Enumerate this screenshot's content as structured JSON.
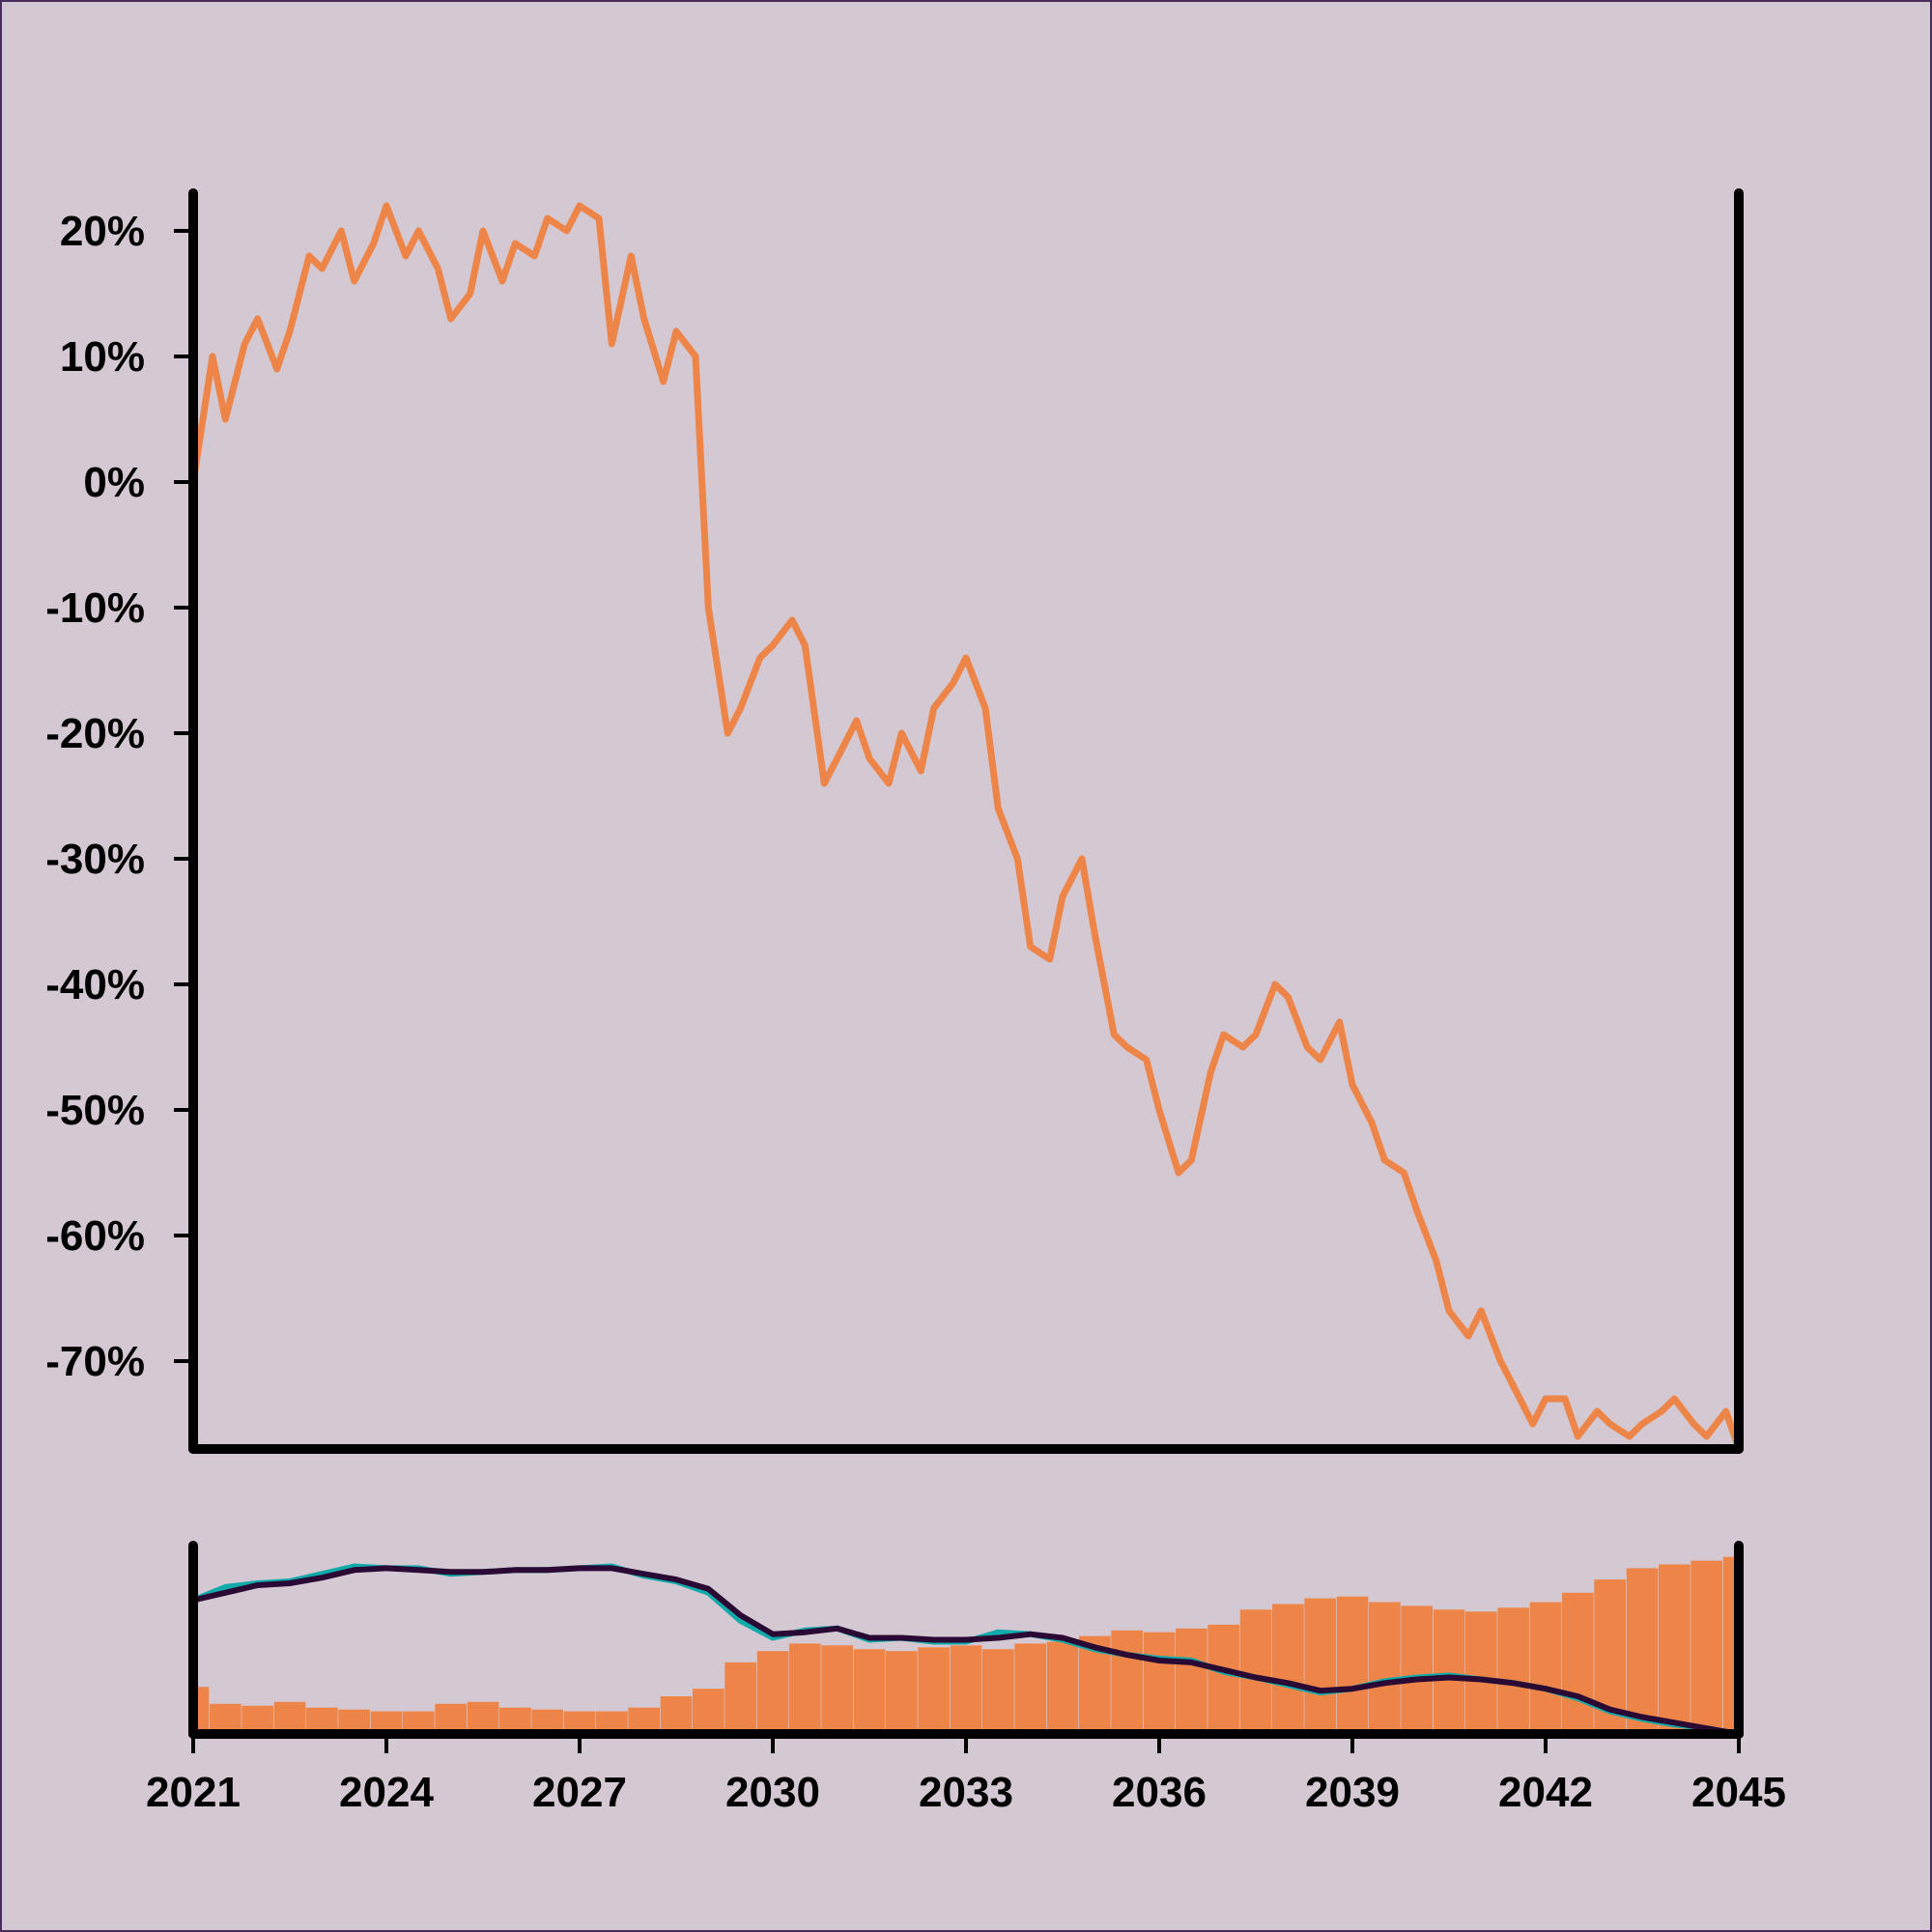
{
  "colors": {
    "background": "#d4c8d2",
    "frame_border": "#4b2a5c",
    "axis": "#000000",
    "price_line": "#ee8548",
    "volume_bars": "#ee8548",
    "fast_ma": "#10aaaa",
    "slow_ma": "#2a0a34"
  },
  "chart_data": [
    {
      "type": "line",
      "role": "main-price-panel",
      "title": "",
      "xlabel": "",
      "ylabel": "",
      "xlim": [
        2021,
        2045
      ],
      "ylim": [
        -77,
        23
      ],
      "y_ticks": [
        20,
        10,
        0,
        -10,
        -20,
        -30,
        -40,
        -50,
        -60,
        -70
      ],
      "y_tick_labels": [
        "20%",
        "10%",
        "0%",
        "-10%",
        "-20%",
        "-30%",
        "-40%",
        "-50%",
        "-60%",
        "-70%"
      ],
      "grid": false,
      "legend": "none",
      "series": [
        {
          "x": [
            2021.0,
            2021.3,
            2021.5,
            2021.8,
            2022.0,
            2022.3,
            2022.5,
            2022.8,
            2023.0,
            2023.3,
            2023.5,
            2023.8,
            2024.0,
            2024.3,
            2024.5,
            2024.8,
            2025.0,
            2025.3,
            2025.5,
            2025.8,
            2026.0,
            2026.3,
            2026.5,
            2026.8,
            2027.0,
            2027.3,
            2027.5,
            2027.8,
            2028.0,
            2028.3,
            2028.5,
            2028.8,
            2029.0,
            2029.3,
            2029.5,
            2029.8,
            2030.0,
            2030.3,
            2030.5,
            2030.8,
            2031.0,
            2031.3,
            2031.5,
            2031.8,
            2032.0,
            2032.3,
            2032.5,
            2032.8,
            2033.0,
            2033.3,
            2033.5,
            2033.8,
            2034.0,
            2034.3,
            2034.5,
            2034.8,
            2035.0,
            2035.3,
            2035.5,
            2035.8,
            2036.0,
            2036.3,
            2036.5,
            2036.8,
            2037.0,
            2037.3,
            2037.5,
            2037.8,
            2038.0,
            2038.3,
            2038.5,
            2038.8,
            2039.0,
            2039.3,
            2039.5,
            2039.8,
            2040.0,
            2040.3,
            2040.5,
            2040.8,
            2041.0,
            2041.3,
            2041.5,
            2041.8,
            2042.0,
            2042.3,
            2042.5,
            2042.8,
            2043.0,
            2043.3,
            2043.5,
            2043.8,
            2044.0,
            2044.3,
            2044.5,
            2044.8,
            2045.0
          ],
          "values": [
            0,
            10,
            5,
            11,
            13,
            9,
            12,
            18,
            17,
            20,
            16,
            19,
            22,
            18,
            20,
            17,
            13,
            15,
            20,
            16,
            19,
            18,
            21,
            20,
            22,
            21,
            11,
            18,
            13,
            8,
            12,
            10,
            -10,
            -20,
            -18,
            -14,
            -13,
            -11,
            -13,
            -24,
            -22,
            -19,
            -22,
            -24,
            -20,
            -23,
            -18,
            -16,
            -14,
            -18,
            -26,
            -30,
            -37,
            -38,
            -33,
            -30,
            -36,
            -44,
            -45,
            -46,
            -50,
            -55,
            -54,
            -47,
            -44,
            -45,
            -44,
            -40,
            -41,
            -45,
            -46,
            -43,
            -48,
            -51,
            -54,
            -55,
            -58,
            -62,
            -66,
            -68,
            -66,
            -70,
            -72,
            -75,
            -73,
            -73,
            -76,
            -74,
            -75,
            -76,
            -75,
            -74,
            -73,
            -75,
            -76,
            -74,
            -77
          ]
        }
      ]
    },
    {
      "type": "bar",
      "role": "lower-volume-panel",
      "title": "",
      "xlabel": "",
      "ylabel": "",
      "xlim": [
        2021,
        2045
      ],
      "x_ticks": [
        2021,
        2024,
        2027,
        2030,
        2033,
        2036,
        2039,
        2042,
        2045
      ],
      "x_tick_labels": [
        "2021",
        "2024",
        "2027",
        "2030",
        "2033",
        "2036",
        "2039",
        "2042",
        "2045"
      ],
      "ylim": [
        0,
        1
      ],
      "grid": false,
      "legend": "none",
      "volume_x": [
        2021.0,
        2021.5,
        2022.0,
        2022.5,
        2023.0,
        2023.5,
        2024.0,
        2024.5,
        2025.0,
        2025.5,
        2026.0,
        2026.5,
        2027.0,
        2027.5,
        2028.0,
        2028.5,
        2029.0,
        2029.5,
        2030.0,
        2030.5,
        2031.0,
        2031.5,
        2032.0,
        2032.5,
        2033.0,
        2033.5,
        2034.0,
        2034.5,
        2035.0,
        2035.5,
        2036.0,
        2036.5,
        2037.0,
        2037.5,
        2038.0,
        2038.5,
        2039.0,
        2039.5,
        2040.0,
        2040.5,
        2041.0,
        2041.5,
        2042.0,
        2042.5,
        2043.0,
        2043.5,
        2044.0,
        2044.5,
        2045.0
      ],
      "volume_values": [
        0.25,
        0.16,
        0.15,
        0.17,
        0.14,
        0.13,
        0.12,
        0.12,
        0.16,
        0.17,
        0.14,
        0.13,
        0.12,
        0.12,
        0.14,
        0.2,
        0.24,
        0.38,
        0.44,
        0.48,
        0.47,
        0.45,
        0.44,
        0.46,
        0.47,
        0.45,
        0.48,
        0.49,
        0.52,
        0.55,
        0.54,
        0.56,
        0.58,
        0.66,
        0.69,
        0.72,
        0.73,
        0.7,
        0.68,
        0.66,
        0.65,
        0.67,
        0.7,
        0.75,
        0.82,
        0.88,
        0.9,
        0.92,
        0.94
      ],
      "series": [
        {
          "role": "fast-moving-average",
          "x": [
            2021.0,
            2021.5,
            2022.0,
            2022.5,
            2023.0,
            2023.5,
            2024.0,
            2024.5,
            2025.0,
            2025.5,
            2026.0,
            2026.5,
            2027.0,
            2027.5,
            2028.0,
            2028.5,
            2029.0,
            2029.5,
            2030.0,
            2030.5,
            2031.0,
            2031.5,
            2032.0,
            2032.5,
            2033.0,
            2033.5,
            2034.0,
            2034.5,
            2035.0,
            2035.5,
            2036.0,
            2036.5,
            2037.0,
            2037.5,
            2038.0,
            2038.5,
            2039.0,
            2039.5,
            2040.0,
            2040.5,
            2041.0,
            2041.5,
            2042.0,
            2042.5,
            2043.0,
            2043.5,
            2044.0,
            2044.5,
            2045.0
          ],
          "values": [
            0.71,
            0.78,
            0.8,
            0.81,
            0.85,
            0.89,
            0.88,
            0.88,
            0.85,
            0.86,
            0.87,
            0.87,
            0.88,
            0.89,
            0.84,
            0.81,
            0.75,
            0.6,
            0.51,
            0.55,
            0.56,
            0.5,
            0.51,
            0.49,
            0.49,
            0.54,
            0.53,
            0.5,
            0.45,
            0.42,
            0.4,
            0.39,
            0.33,
            0.3,
            0.26,
            0.22,
            0.24,
            0.28,
            0.3,
            0.31,
            0.29,
            0.27,
            0.24,
            0.19,
            0.12,
            0.08,
            0.05,
            0.03,
            0.0
          ]
        },
        {
          "role": "slow-moving-average",
          "x": [
            2021.0,
            2021.5,
            2022.0,
            2022.5,
            2023.0,
            2023.5,
            2024.0,
            2024.5,
            2025.0,
            2025.5,
            2026.0,
            2026.5,
            2027.0,
            2027.5,
            2028.0,
            2028.5,
            2029.0,
            2029.5,
            2030.0,
            2030.5,
            2031.0,
            2031.5,
            2032.0,
            2032.5,
            2033.0,
            2033.5,
            2034.0,
            2034.5,
            2035.0,
            2035.5,
            2036.0,
            2036.5,
            2037.0,
            2037.5,
            2038.0,
            2038.5,
            2039.0,
            2039.5,
            2040.0,
            2040.5,
            2041.0,
            2041.5,
            2042.0,
            2042.5,
            2043.0,
            2043.5,
            2044.0,
            2044.5,
            2045.0
          ],
          "values": [
            0.71,
            0.75,
            0.79,
            0.8,
            0.83,
            0.87,
            0.88,
            0.87,
            0.86,
            0.86,
            0.87,
            0.87,
            0.88,
            0.88,
            0.85,
            0.82,
            0.77,
            0.63,
            0.53,
            0.54,
            0.56,
            0.51,
            0.51,
            0.5,
            0.5,
            0.51,
            0.53,
            0.51,
            0.46,
            0.42,
            0.39,
            0.38,
            0.34,
            0.3,
            0.27,
            0.23,
            0.24,
            0.27,
            0.29,
            0.3,
            0.29,
            0.27,
            0.24,
            0.2,
            0.13,
            0.09,
            0.06,
            0.03,
            0.0
          ]
        }
      ]
    }
  ]
}
